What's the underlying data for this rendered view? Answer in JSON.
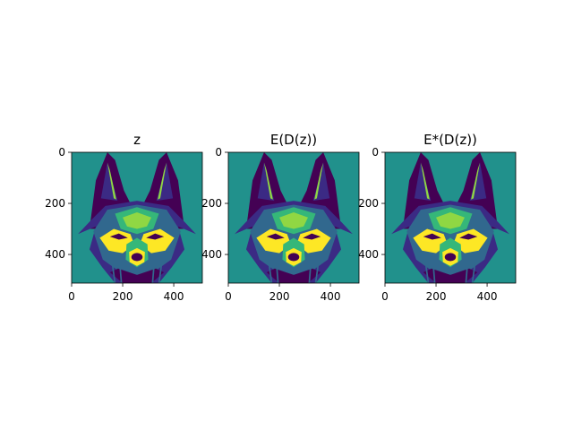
{
  "chart_data": [
    {
      "type": "heatmap",
      "title": "z",
      "colormap": "viridis",
      "image_size": [
        512,
        512
      ],
      "x_ticks": [
        "0",
        "200",
        "400"
      ],
      "y_ticks": [
        "0",
        "200",
        "400"
      ],
      "x_tick_values": [
        0,
        200,
        400
      ],
      "y_tick_values": [
        0,
        200,
        400
      ],
      "xlim": [
        0,
        512
      ],
      "ylim": [
        512,
        0
      ],
      "content": "fox-face-image"
    },
    {
      "type": "heatmap",
      "title": "E(D(z))",
      "colormap": "viridis",
      "image_size": [
        512,
        512
      ],
      "x_ticks": [
        "0",
        "200",
        "400"
      ],
      "y_ticks": [
        "0",
        "200",
        "400"
      ],
      "x_tick_values": [
        0,
        200,
        400
      ],
      "y_tick_values": [
        0,
        200,
        400
      ],
      "xlim": [
        0,
        512
      ],
      "ylim": [
        512,
        0
      ],
      "content": "fox-face-image"
    },
    {
      "type": "heatmap",
      "title": "E*(D(z))",
      "colormap": "viridis",
      "image_size": [
        512,
        512
      ],
      "x_ticks": [
        "0",
        "200",
        "400"
      ],
      "y_ticks": [
        "0",
        "200",
        "400"
      ],
      "x_tick_values": [
        0,
        200,
        400
      ],
      "y_tick_values": [
        0,
        200,
        400
      ],
      "xlim": [
        0,
        512
      ],
      "ylim": [
        512,
        0
      ],
      "content": "fox-face-image"
    }
  ],
  "colors": {
    "background": "#21918c",
    "dark": "#440154",
    "dark2": "#3b2a84",
    "mid": "#31688e",
    "mid2": "#35b779",
    "light": "#90d743",
    "bright": "#fde725"
  }
}
